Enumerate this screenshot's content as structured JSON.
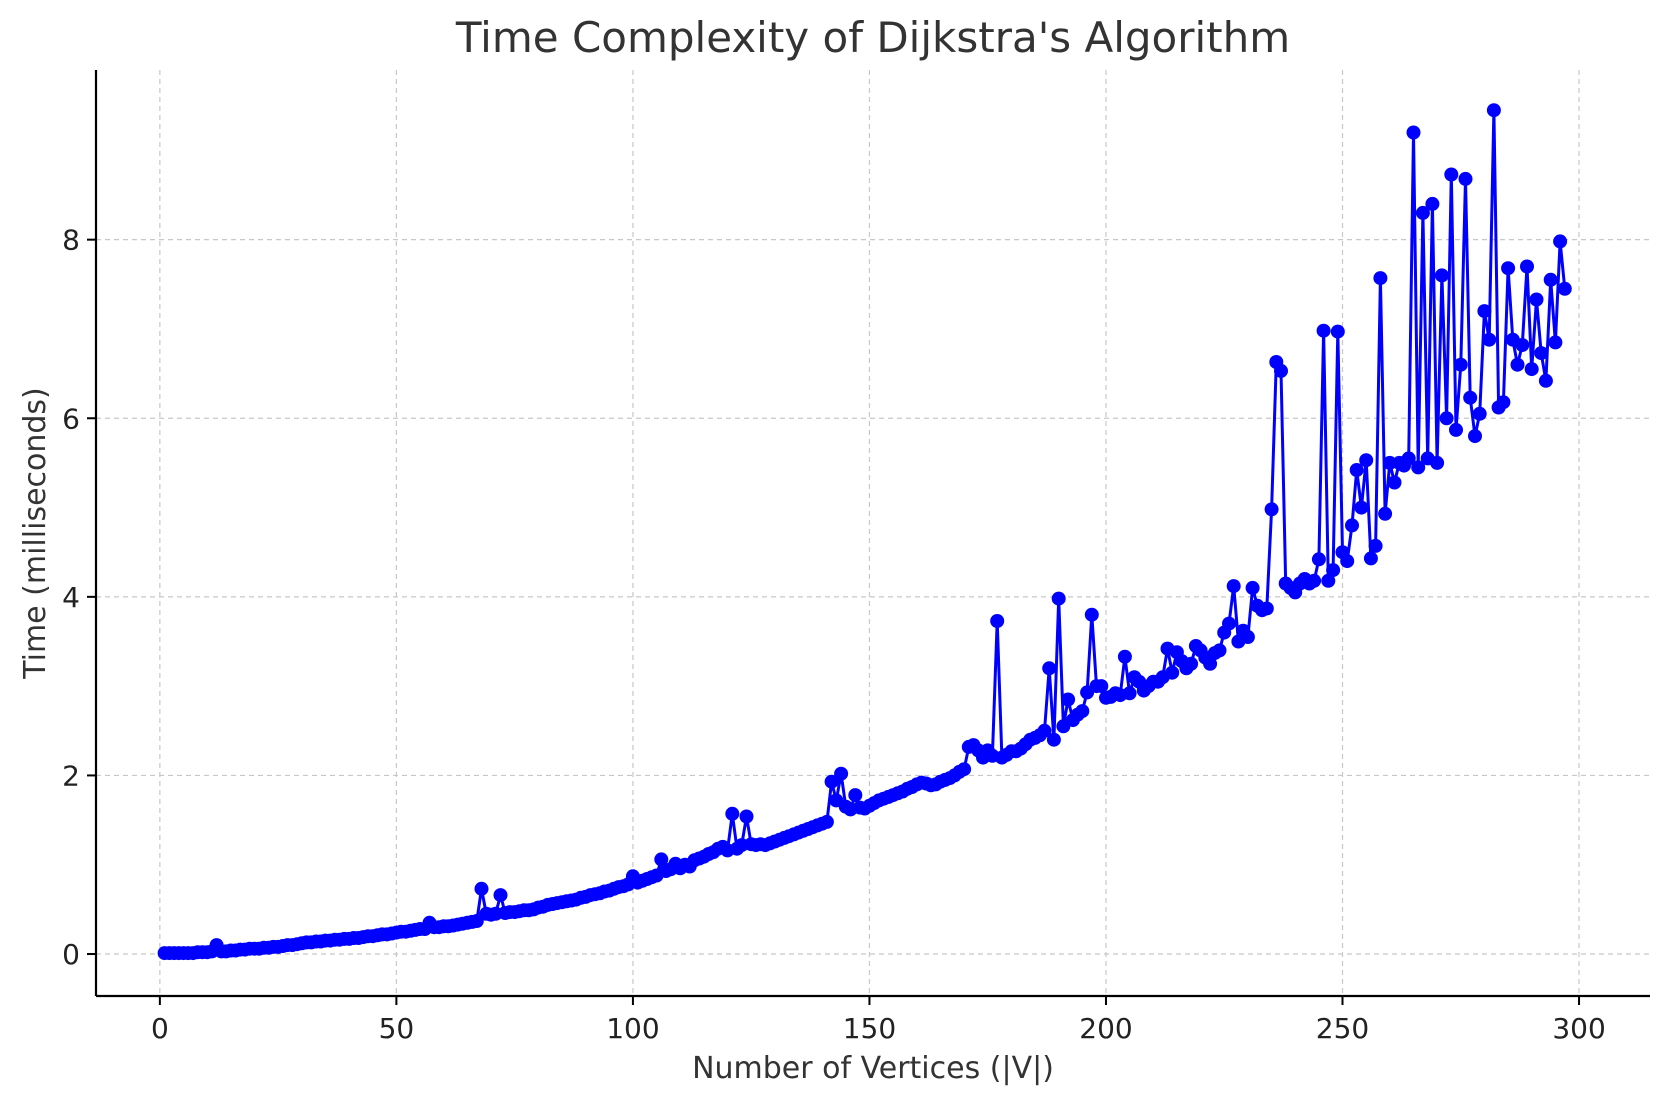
{
  "chart_data": {
    "type": "line",
    "title": "Time Complexity of Dijkstra's Algorithm",
    "xlabel": "Number of Vertices (|V|)",
    "ylabel": "Time (milliseconds)",
    "xlim": [
      -13.5,
      315
    ],
    "ylim": [
      -0.47,
      9.9
    ],
    "xticks": [
      0,
      50,
      100,
      150,
      200,
      250,
      300
    ],
    "yticks": [
      0,
      2,
      4,
      6,
      8
    ],
    "grid": true,
    "marker": "circle",
    "color": "#0000ff",
    "x_start": 1,
    "x_step": 1,
    "series": [
      {
        "values": [
          0.01,
          0.01,
          0.01,
          0.01,
          0.01,
          0.01,
          0.01,
          0.02,
          0.02,
          0.02,
          0.03,
          0.1,
          0.03,
          0.03,
          0.04,
          0.04,
          0.05,
          0.05,
          0.06,
          0.06,
          0.06,
          0.07,
          0.07,
          0.08,
          0.08,
          0.09,
          0.1,
          0.1,
          0.11,
          0.12,
          0.13,
          0.13,
          0.14,
          0.14,
          0.15,
          0.15,
          0.16,
          0.16,
          0.17,
          0.17,
          0.18,
          0.18,
          0.19,
          0.2,
          0.2,
          0.21,
          0.22,
          0.22,
          0.23,
          0.24,
          0.25,
          0.25,
          0.26,
          0.27,
          0.28,
          0.28,
          0.35,
          0.3,
          0.3,
          0.31,
          0.31,
          0.32,
          0.33,
          0.34,
          0.35,
          0.36,
          0.37,
          0.73,
          0.45,
          0.44,
          0.45,
          0.66,
          0.46,
          0.47,
          0.47,
          0.48,
          0.49,
          0.49,
          0.5,
          0.52,
          0.53,
          0.55,
          0.56,
          0.57,
          0.58,
          0.59,
          0.6,
          0.61,
          0.63,
          0.64,
          0.66,
          0.67,
          0.68,
          0.7,
          0.71,
          0.73,
          0.75,
          0.76,
          0.78,
          0.87,
          0.8,
          0.82,
          0.84,
          0.86,
          0.88,
          1.06,
          0.93,
          0.95,
          1.01,
          0.96,
          1.0,
          0.98,
          1.05,
          1.07,
          1.09,
          1.12,
          1.14,
          1.18,
          1.2,
          1.16,
          1.57,
          1.18,
          1.22,
          1.54,
          1.23,
          1.22,
          1.23,
          1.22,
          1.24,
          1.26,
          1.28,
          1.3,
          1.32,
          1.34,
          1.36,
          1.38,
          1.4,
          1.42,
          1.44,
          1.46,
          1.48,
          1.93,
          1.72,
          2.02,
          1.65,
          1.62,
          1.78,
          1.64,
          1.63,
          1.66,
          1.69,
          1.72,
          1.74,
          1.76,
          1.78,
          1.8,
          1.82,
          1.85,
          1.87,
          1.9,
          1.92,
          1.91,
          1.89,
          1.9,
          1.93,
          1.95,
          1.97,
          2.0,
          2.04,
          2.07,
          2.32,
          2.34,
          2.28,
          2.2,
          2.28,
          2.22,
          3.73,
          2.2,
          2.23,
          2.27,
          2.27,
          2.3,
          2.35,
          2.4,
          2.42,
          2.45,
          2.5,
          3.2,
          2.4,
          3.98,
          2.55,
          2.85,
          2.62,
          2.68,
          2.72,
          2.93,
          3.8,
          3.0,
          3.0,
          2.87,
          2.88,
          2.92,
          2.9,
          3.33,
          2.92,
          3.1,
          3.05,
          2.95,
          3.0,
          3.05,
          3.05,
          3.1,
          3.42,
          3.15,
          3.38,
          3.28,
          3.2,
          3.25,
          3.45,
          3.4,
          3.32,
          3.25,
          3.37,
          3.4,
          3.6,
          3.7,
          4.12,
          3.5,
          3.62,
          3.55,
          4.1,
          3.9,
          3.85,
          3.87,
          4.98,
          6.63,
          6.53,
          4.15,
          4.1,
          4.05,
          4.15,
          4.2,
          4.15,
          4.18,
          4.42,
          6.98,
          4.18,
          4.3,
          6.97,
          4.5,
          4.4,
          4.8,
          5.42,
          5.0,
          5.53,
          4.43,
          4.57,
          7.57,
          4.93,
          5.5,
          5.28,
          5.5,
          5.47,
          5.55,
          9.2,
          5.45,
          8.3,
          5.55,
          8.4,
          5.5,
          7.6,
          6.0,
          8.73,
          5.87,
          6.6,
          8.68,
          6.23,
          5.8,
          6.05,
          7.2,
          6.88,
          9.45,
          6.12,
          6.18,
          7.68,
          6.88,
          6.6,
          6.82,
          7.7,
          6.55,
          7.33,
          6.73,
          6.42,
          7.55,
          6.85,
          7.98,
          7.45
        ]
      }
    ]
  }
}
